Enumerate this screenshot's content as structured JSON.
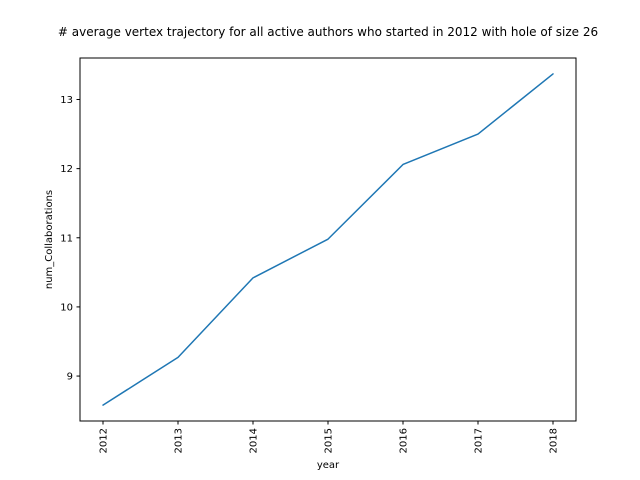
{
  "chart_data": {
    "type": "line",
    "title": "# average vertex trajectory for all active authors who started in 2012 with hole of size 26",
    "xlabel": "year",
    "ylabel": "num_Collaborations",
    "x": [
      "2012",
      "2013",
      "2014",
      "2015",
      "2016",
      "2017",
      "2018"
    ],
    "series": [
      {
        "values": [
          8.58,
          9.27,
          10.42,
          10.98,
          12.06,
          12.5,
          13.37
        ],
        "color": "#1f77b4"
      }
    ],
    "ylim": [
      8.35,
      13.6
    ],
    "y_ticks": [
      9,
      10,
      11,
      12,
      13
    ],
    "x_tick_rotation": "vertical",
    "grid": false,
    "legend": "none"
  }
}
